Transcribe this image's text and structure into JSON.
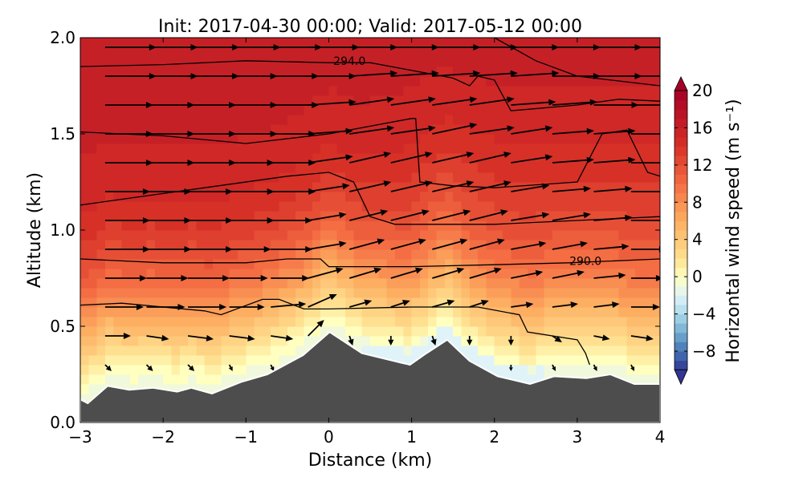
{
  "chart_data": {
    "type": "heatmap",
    "title": "Init: 2017-04-30 00:00; Valid: 2017-05-12 00:00",
    "xlabel": "Distance (km)",
    "ylabel": "Altitude (km)",
    "xlim": [
      -3,
      4
    ],
    "ylim": [
      0.0,
      2.0
    ],
    "xticks": [
      "−3",
      "−2",
      "−1",
      "0",
      "1",
      "2",
      "3",
      "4"
    ],
    "xtick_values": [
      -3,
      -2,
      -1,
      0,
      1,
      2,
      3,
      4
    ],
    "yticks": [
      "0.0",
      "0.5",
      "1.0",
      "1.5",
      "2.0"
    ],
    "ytick_values": [
      0.0,
      0.5,
      1.0,
      1.5,
      2.0
    ],
    "grid": false,
    "colorbar": {
      "label": "Horizontal wind speed (m s⁻¹)",
      "range": [
        -10,
        20
      ],
      "extend": "both",
      "ticks": [
        "20",
        "16",
        "12",
        "8",
        "4",
        "0",
        "−4",
        "−8"
      ],
      "tick_values": [
        20,
        16,
        12,
        8,
        4,
        0,
        -4,
        -8
      ],
      "colormap": "RdYlBu_r",
      "color_stops": [
        [
          -10,
          "#313695"
        ],
        [
          -8,
          "#4575b4"
        ],
        [
          -6,
          "#74add1"
        ],
        [
          -4,
          "#abd9e9"
        ],
        [
          -2,
          "#e0f3f8"
        ],
        [
          0,
          "#ffffbf"
        ],
        [
          2,
          "#fee090"
        ],
        [
          6,
          "#fdae61"
        ],
        [
          10,
          "#f46d43"
        ],
        [
          14,
          "#d73027"
        ],
        [
          20,
          "#a50026"
        ]
      ]
    },
    "terrain": {
      "color": "#4d4d4d",
      "x": [
        -3,
        -2.91,
        -2.67,
        -2.41,
        -2.12,
        -1.83,
        -1.66,
        -1.41,
        -1.06,
        -0.74,
        -0.31,
        0.01,
        0.4,
        0.88,
        0.98,
        1.18,
        1.43,
        1.7,
        2.04,
        2.43,
        2.72,
        3.11,
        3.4,
        3.69,
        4.0
      ],
      "z": [
        0.12,
        0.1,
        0.19,
        0.17,
        0.18,
        0.16,
        0.18,
        0.15,
        0.21,
        0.25,
        0.35,
        0.47,
        0.36,
        0.31,
        0.3,
        0.36,
        0.43,
        0.32,
        0.24,
        0.2,
        0.24,
        0.23,
        0.25,
        0.2,
        0.2
      ]
    },
    "wind_speed_description": "weak near terrain (0-3 m/s, locally slightly negative), increasing to ~12 m/s at 1 km and ~16 m/s at 2 km",
    "contours": [
      {
        "label": "294.0",
        "label_at": [
          0.25,
          1.88
        ],
        "x": [
          -3,
          -2,
          -1,
          0,
          0.5,
          1.5,
          1.7,
          1.8,
          2.0,
          2.2,
          3.0,
          3.5,
          4.0
        ],
        "z": [
          1.85,
          1.86,
          1.88,
          1.87,
          1.87,
          1.79,
          1.75,
          1.8,
          1.78,
          1.62,
          1.65,
          1.68,
          1.67
        ]
      },
      {
        "label": "",
        "x": [
          2.0,
          2.5,
          3.0,
          4.0
        ],
        "z": [
          2.0,
          1.88,
          1.8,
          1.75
        ]
      },
      {
        "label": "",
        "x": [
          -3,
          -2,
          -1,
          0,
          1.0,
          1.05,
          1.1,
          1.5,
          2,
          3,
          3.3,
          3.6,
          3.85,
          4.0
        ],
        "z": [
          1.51,
          1.49,
          1.45,
          1.5,
          1.58,
          1.58,
          1.25,
          1.23,
          1.22,
          1.25,
          1.5,
          1.52,
          1.3,
          1.28
        ]
      },
      {
        "label": "",
        "x": [
          -3,
          -2,
          -1.5,
          -0.5,
          0,
          0.3,
          0.5,
          0.8,
          2,
          3,
          4
        ],
        "z": [
          1.13,
          1.19,
          1.22,
          1.28,
          1.3,
          1.25,
          1.07,
          1.03,
          1.03,
          1.05,
          1.07
        ]
      },
      {
        "label": "290.0",
        "label_at": [
          3.1,
          0.84
        ],
        "x": [
          -3,
          -2,
          -1,
          -0.5,
          -0.1,
          0,
          1,
          2,
          2.9,
          4
        ],
        "z": [
          0.85,
          0.83,
          0.83,
          0.85,
          0.85,
          0.81,
          0.81,
          0.82,
          0.83,
          0.85
        ]
      },
      {
        "label": "",
        "x": [
          -3,
          -2.5,
          -1.5,
          -1.3,
          -0.8,
          -0.6,
          -0.3,
          0,
          1,
          1.8,
          2.3,
          2.4,
          3.0,
          3.1,
          3.15
        ],
        "z": [
          0.61,
          0.62,
          0.58,
          0.56,
          0.64,
          0.64,
          0.59,
          0.59,
          0.6,
          0.6,
          0.56,
          0.47,
          0.43,
          0.36,
          0.3
        ]
      }
    ],
    "wind_vectors": {
      "x": [
        -2.7,
        -2.2,
        -1.7,
        -1.2,
        -0.7,
        -0.25,
        0.25,
        0.75,
        1.25,
        1.7,
        2.2,
        2.7,
        3.2,
        3.65
      ],
      "z": [
        0.3,
        0.45,
        0.6,
        0.75,
        0.9,
        1.05,
        1.2,
        1.35,
        1.5,
        1.65,
        1.8,
        1.95
      ],
      "u": [
        [
          2,
          2,
          2,
          1,
          1,
          1,
          0,
          0,
          0,
          0,
          0,
          1,
          1,
          1
        ],
        [
          8,
          7,
          8,
          8,
          7,
          5,
          1,
          0,
          1,
          0,
          0,
          3,
          5,
          7
        ],
        [
          12,
          12,
          12,
          11,
          11,
          9,
          7,
          6,
          7,
          6,
          7,
          8,
          8,
          9
        ],
        [
          13,
          13,
          13,
          12,
          12,
          11,
          10,
          10,
          10,
          10,
          10,
          10,
          10,
          10
        ],
        [
          14,
          14,
          14,
          13,
          13,
          12,
          11,
          11,
          11,
          11,
          11,
          11,
          11,
          11
        ],
        [
          14,
          14,
          14,
          14,
          13,
          12,
          12,
          12,
          12,
          12,
          12,
          12,
          12,
          12
        ],
        [
          14,
          14,
          14,
          14,
          14,
          13,
          13,
          13,
          13,
          13,
          12,
          12,
          12,
          12
        ],
        [
          15,
          15,
          15,
          14,
          14,
          14,
          13,
          13,
          13,
          13,
          13,
          13,
          13,
          13
        ],
        [
          15,
          15,
          15,
          15,
          14,
          14,
          14,
          14,
          14,
          14,
          13,
          13,
          13,
          13
        ],
        [
          15,
          15,
          15,
          15,
          15,
          15,
          14,
          14,
          14,
          14,
          14,
          14,
          14,
          14
        ],
        [
          16,
          16,
          16,
          15,
          15,
          15,
          15,
          15,
          15,
          15,
          15,
          15,
          15,
          15
        ],
        [
          16,
          16,
          16,
          16,
          16,
          16,
          15,
          15,
          15,
          15,
          15,
          15,
          15,
          15
        ]
      ],
      "w": [
        [
          -2,
          -2,
          -2,
          -2,
          -2,
          -2,
          -2,
          -2,
          -2,
          -2,
          -2,
          -2,
          -2,
          -2
        ],
        [
          0,
          -1,
          -1,
          -1,
          -1,
          5,
          -3,
          -3,
          -3,
          -3,
          -3,
          -2,
          -1,
          -1
        ],
        [
          0,
          0,
          0,
          0,
          1,
          4,
          2,
          2,
          2,
          2,
          1,
          1,
          1,
          0
        ],
        [
          0,
          0,
          0,
          0,
          0,
          3,
          3,
          3,
          3,
          3,
          2,
          2,
          1,
          0
        ],
        [
          0,
          0,
          0,
          0,
          0,
          2,
          3,
          3,
          3,
          3,
          2,
          2,
          1,
          0
        ],
        [
          0,
          0,
          0,
          0,
          0,
          2,
          3,
          3,
          3,
          3,
          2,
          2,
          1,
          0
        ],
        [
          0,
          0,
          0,
          0,
          0,
          2,
          3,
          3,
          3,
          3,
          2,
          1,
          1,
          0
        ],
        [
          0,
          0,
          0,
          0,
          0,
          2,
          3,
          3,
          3,
          3,
          2,
          1,
          1,
          0
        ],
        [
          0,
          0,
          0,
          0,
          0,
          1,
          2,
          2,
          3,
          2,
          2,
          1,
          1,
          0
        ],
        [
          0,
          0,
          0,
          0,
          0,
          1,
          2,
          2,
          2,
          2,
          1,
          1,
          0,
          0
        ],
        [
          0,
          0,
          0,
          0,
          0,
          0,
          1,
          1,
          1,
          1,
          1,
          0,
          0,
          0
        ],
        [
          0,
          0,
          0,
          0,
          0,
          0,
          0,
          0,
          0,
          0,
          0,
          0,
          0,
          0
        ]
      ]
    }
  }
}
